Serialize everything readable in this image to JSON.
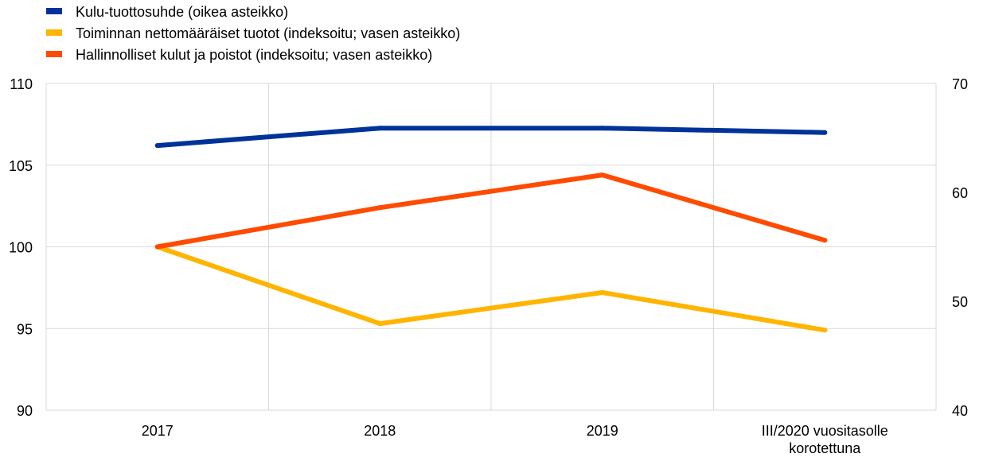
{
  "chart_data": {
    "type": "line",
    "categories": [
      "2017",
      "2018",
      "2019",
      "III/2020 vuositasolle korotettuna"
    ],
    "category_lines": [
      [
        "2017"
      ],
      [
        "2018"
      ],
      [
        "2019"
      ],
      [
        "III/2020 vuositasolle",
        "korotettuna"
      ]
    ],
    "left_axis": {
      "ylim": [
        90,
        110
      ],
      "ticks": [
        "90",
        "95",
        "100",
        "105",
        "110"
      ]
    },
    "right_axis": {
      "ylim": [
        40,
        70
      ],
      "ticks": [
        "40",
        "50",
        "60",
        "70"
      ]
    },
    "series": [
      {
        "name": "Kulu-tuottosuhde (oikea asteikko)",
        "axis": "right",
        "color": "#003399",
        "values": [
          64.3,
          65.9,
          65.9,
          65.5
        ]
      },
      {
        "name": "Toiminnan nettomääräiset tuotot (indeksoitu; vasen asteikko)",
        "axis": "left",
        "color": "#FFB400",
        "values": [
          100.0,
          95.3,
          97.2,
          94.9
        ]
      },
      {
        "name": "Hallinnolliset kulut ja poistot (indeksoitu; vasen asteikko)",
        "axis": "left",
        "color": "#FF4B00",
        "values": [
          100.0,
          102.4,
          104.4,
          100.4
        ]
      }
    ],
    "grid": true,
    "legend": "top-left"
  }
}
